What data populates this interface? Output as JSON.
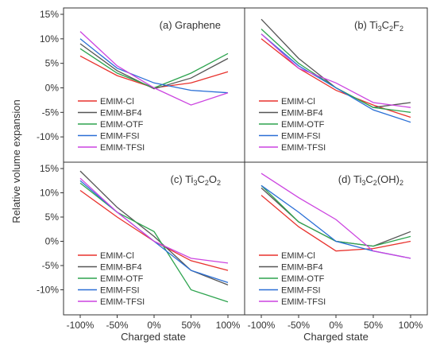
{
  "figure": {
    "ylabel": "Relative volume expansion",
    "xlabel": "Charged state"
  },
  "colors": {
    "EMIM-Cl": "#e8322d",
    "EMIM-BF4": "#555555",
    "EMIM-OTF": "#2ea44f",
    "EMIM-FSI": "#2a6fd6",
    "EMIM-TFSI": "#cc44e0"
  },
  "chart_data": [
    {
      "type": "line",
      "title_parts": [
        "(a) Graphene"
      ],
      "xlim": [
        -100,
        100
      ],
      "ylim": [
        -15,
        15
      ],
      "x_ticks": [
        "-100%",
        "-50%",
        "0%",
        "50%",
        "100%"
      ],
      "y_ticks": [
        "-10%",
        "-5%",
        "0%",
        "5%",
        "10%",
        "15%"
      ],
      "legend": "bottom-left",
      "series": [
        {
          "name": "EMIM-Cl",
          "values": [
            [
              -100,
              6.5
            ],
            [
              -50,
              2.5
            ],
            [
              0,
              0
            ],
            [
              50,
              1
            ],
            [
              100,
              3.3
            ]
          ]
        },
        {
          "name": "EMIM-BF4",
          "values": [
            [
              -100,
              9
            ],
            [
              -50,
              3.5
            ],
            [
              0,
              -0.2
            ],
            [
              50,
              2
            ],
            [
              100,
              6
            ]
          ]
        },
        {
          "name": "EMIM-OTF",
          "values": [
            [
              -100,
              8
            ],
            [
              -50,
              3
            ],
            [
              0,
              0
            ],
            [
              50,
              3
            ],
            [
              100,
              7
            ]
          ]
        },
        {
          "name": "EMIM-FSI",
          "values": [
            [
              -100,
              10
            ],
            [
              -50,
              4
            ],
            [
              0,
              1
            ],
            [
              50,
              -0.5
            ],
            [
              100,
              -1
            ]
          ]
        },
        {
          "name": "EMIM-TFSI",
          "values": [
            [
              -100,
              11.5
            ],
            [
              -50,
              4.5
            ],
            [
              0,
              0
            ],
            [
              50,
              -3.5
            ],
            [
              100,
              -1
            ]
          ]
        }
      ]
    },
    {
      "type": "line",
      "title_parts": [
        "(b) Ti",
        "3",
        "C",
        "2",
        "F",
        "2"
      ],
      "xlim": [
        -100,
        100
      ],
      "ylim": [
        -15,
        15
      ],
      "x_ticks": [
        "-100%",
        "-50%",
        "0%",
        "50%",
        "100%"
      ],
      "y_ticks": [
        "-10%",
        "-5%",
        "0%",
        "5%",
        "10%",
        "15%"
      ],
      "legend": "bottom-left",
      "series": [
        {
          "name": "EMIM-Cl",
          "values": [
            [
              -100,
              10
            ],
            [
              -50,
              4
            ],
            [
              0,
              -0.5
            ],
            [
              50,
              -3.5
            ],
            [
              100,
              -6
            ]
          ]
        },
        {
          "name": "EMIM-BF4",
          "values": [
            [
              -100,
              14
            ],
            [
              -50,
              6
            ],
            [
              0,
              0
            ],
            [
              50,
              -4
            ],
            [
              100,
              -3
            ]
          ]
        },
        {
          "name": "EMIM-OTF",
          "values": [
            [
              -100,
              12
            ],
            [
              -50,
              5
            ],
            [
              0,
              0
            ],
            [
              50,
              -4
            ],
            [
              100,
              -5
            ]
          ]
        },
        {
          "name": "EMIM-FSI",
          "values": [
            [
              -100,
              11
            ],
            [
              -50,
              4.5
            ],
            [
              0,
              0
            ],
            [
              50,
              -4.5
            ],
            [
              100,
              -7
            ]
          ]
        },
        {
          "name": "EMIM-TFSI",
          "values": [
            [
              -100,
              11
            ],
            [
              -50,
              4
            ],
            [
              0,
              1
            ],
            [
              50,
              -3
            ],
            [
              100,
              -4
            ]
          ]
        }
      ]
    },
    {
      "type": "line",
      "title_parts": [
        "(c) Ti",
        "3",
        "C",
        "2",
        "O",
        "2"
      ],
      "xlim": [
        -100,
        100
      ],
      "ylim": [
        -15,
        15
      ],
      "x_ticks": [
        "-100%",
        "-50%",
        "0%",
        "50%",
        "100%"
      ],
      "y_ticks": [
        "-10%",
        "-5%",
        "0%",
        "5%",
        "10%",
        "15%"
      ],
      "legend": "bottom-left",
      "series": [
        {
          "name": "EMIM-Cl",
          "values": [
            [
              -100,
              10.5
            ],
            [
              -50,
              5
            ],
            [
              0,
              0
            ],
            [
              50,
              -4
            ],
            [
              100,
              -6
            ]
          ]
        },
        {
          "name": "EMIM-BF4",
          "values": [
            [
              -100,
              14.5
            ],
            [
              -50,
              7
            ],
            [
              0,
              1
            ],
            [
              50,
              -6
            ],
            [
              100,
              -9
            ]
          ]
        },
        {
          "name": "EMIM-OTF",
          "values": [
            [
              -100,
              12
            ],
            [
              -50,
              6
            ],
            [
              0,
              2
            ],
            [
              50,
              -10
            ],
            [
              100,
              -12.5
            ]
          ]
        },
        {
          "name": "EMIM-FSI",
          "values": [
            [
              -100,
              12.5
            ],
            [
              -50,
              6
            ],
            [
              0,
              0
            ],
            [
              50,
              -6
            ],
            [
              100,
              -8.5
            ]
          ]
        },
        {
          "name": "EMIM-TFSI",
          "values": [
            [
              -100,
              13
            ],
            [
              -50,
              6
            ],
            [
              0,
              0
            ],
            [
              50,
              -3.5
            ],
            [
              100,
              -4.5
            ]
          ]
        }
      ]
    },
    {
      "type": "line",
      "title_parts": [
        "(d) Ti",
        "3",
        "C",
        "2",
        "(OH)",
        "2"
      ],
      "xlim": [
        -100,
        100
      ],
      "ylim": [
        -15,
        15
      ],
      "x_ticks": [
        "-100%",
        "-50%",
        "0%",
        "50%",
        "100%"
      ],
      "y_ticks": [
        "-10%",
        "-5%",
        "0%",
        "5%",
        "10%",
        "15%"
      ],
      "legend": "bottom-left",
      "series": [
        {
          "name": "EMIM-Cl",
          "values": [
            [
              -100,
              9.5
            ],
            [
              -50,
              3
            ],
            [
              0,
              -2
            ],
            [
              50,
              -1.5
            ],
            [
              100,
              0
            ]
          ]
        },
        {
          "name": "EMIM-BF4",
          "values": [
            [
              -100,
              11
            ],
            [
              -50,
              4
            ],
            [
              0,
              0
            ],
            [
              50,
              -1
            ],
            [
              100,
              2
            ]
          ]
        },
        {
          "name": "EMIM-OTF",
          "values": [
            [
              -100,
              11.5
            ],
            [
              -50,
              4
            ],
            [
              0,
              0
            ],
            [
              50,
              -1
            ],
            [
              100,
              1
            ]
          ]
        },
        {
          "name": "EMIM-FSI",
          "values": [
            [
              -100,
              11.5
            ],
            [
              -50,
              6
            ],
            [
              0,
              0
            ],
            [
              50,
              -2
            ],
            [
              100,
              -3.5
            ]
          ]
        },
        {
          "name": "EMIM-TFSI",
          "values": [
            [
              -100,
              14
            ],
            [
              -50,
              9
            ],
            [
              0,
              4.5
            ],
            [
              50,
              -2
            ],
            [
              100,
              -3.5
            ]
          ]
        }
      ]
    }
  ]
}
